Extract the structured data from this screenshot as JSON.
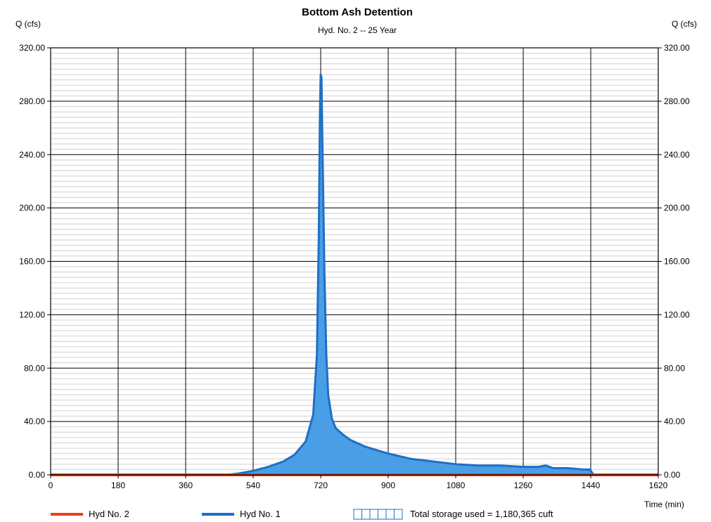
{
  "chart_data": {
    "type": "area",
    "title": "Bottom Ash Detention",
    "subtitle": "Hyd. No. 2 -- 25 Year",
    "ylabel_left": "Q (cfs)",
    "ylabel_right": "Q (cfs)",
    "xlabel": "Time (min)",
    "xlim": [
      0,
      1620
    ],
    "ylim": [
      0,
      320
    ],
    "x_ticks": [
      0,
      180,
      360,
      540,
      720,
      900,
      1080,
      1260,
      1440,
      1620
    ],
    "x_tick_labels": [
      "0",
      "180",
      "360",
      "540",
      "720",
      "900",
      "1080",
      "1260",
      "1440",
      "1620"
    ],
    "y_ticks": [
      0,
      40,
      80,
      120,
      160,
      200,
      240,
      280,
      320
    ],
    "y_tick_labels": [
      "0.00",
      "40.00",
      "80.00",
      "120.00",
      "160.00",
      "200.00",
      "240.00",
      "280.00",
      "320.00"
    ],
    "grid": true,
    "minor_y_step": 4,
    "legend_position": "bottom",
    "series": [
      {
        "name": "Hyd No. 2",
        "color": "#e8401c",
        "x": [
          0,
          1620
        ],
        "y": [
          0,
          0
        ]
      },
      {
        "name": "Hyd No. 1",
        "color": "#1f6fc5",
        "fill": "#4a9ee6",
        "x": [
          470,
          500,
          540,
          580,
          620,
          650,
          680,
          700,
          710,
          715,
          718,
          720,
          722,
          725,
          730,
          735,
          740,
          750,
          760,
          780,
          800,
          840,
          900,
          960,
          1020,
          1080,
          1140,
          1200,
          1260,
          1300,
          1320,
          1340,
          1380,
          1420,
          1438,
          1445,
          1450
        ],
        "y": [
          0,
          1,
          3,
          6,
          10,
          15,
          25,
          45,
          90,
          180,
          270,
          300,
          298,
          240,
          150,
          90,
          60,
          42,
          35,
          30,
          26,
          21,
          16,
          12,
          10,
          8,
          7,
          7,
          6,
          6,
          7,
          5,
          5,
          4,
          4,
          1,
          0
        ]
      }
    ],
    "storage_legend": "Total storage used = 1,180,365 cuft"
  }
}
